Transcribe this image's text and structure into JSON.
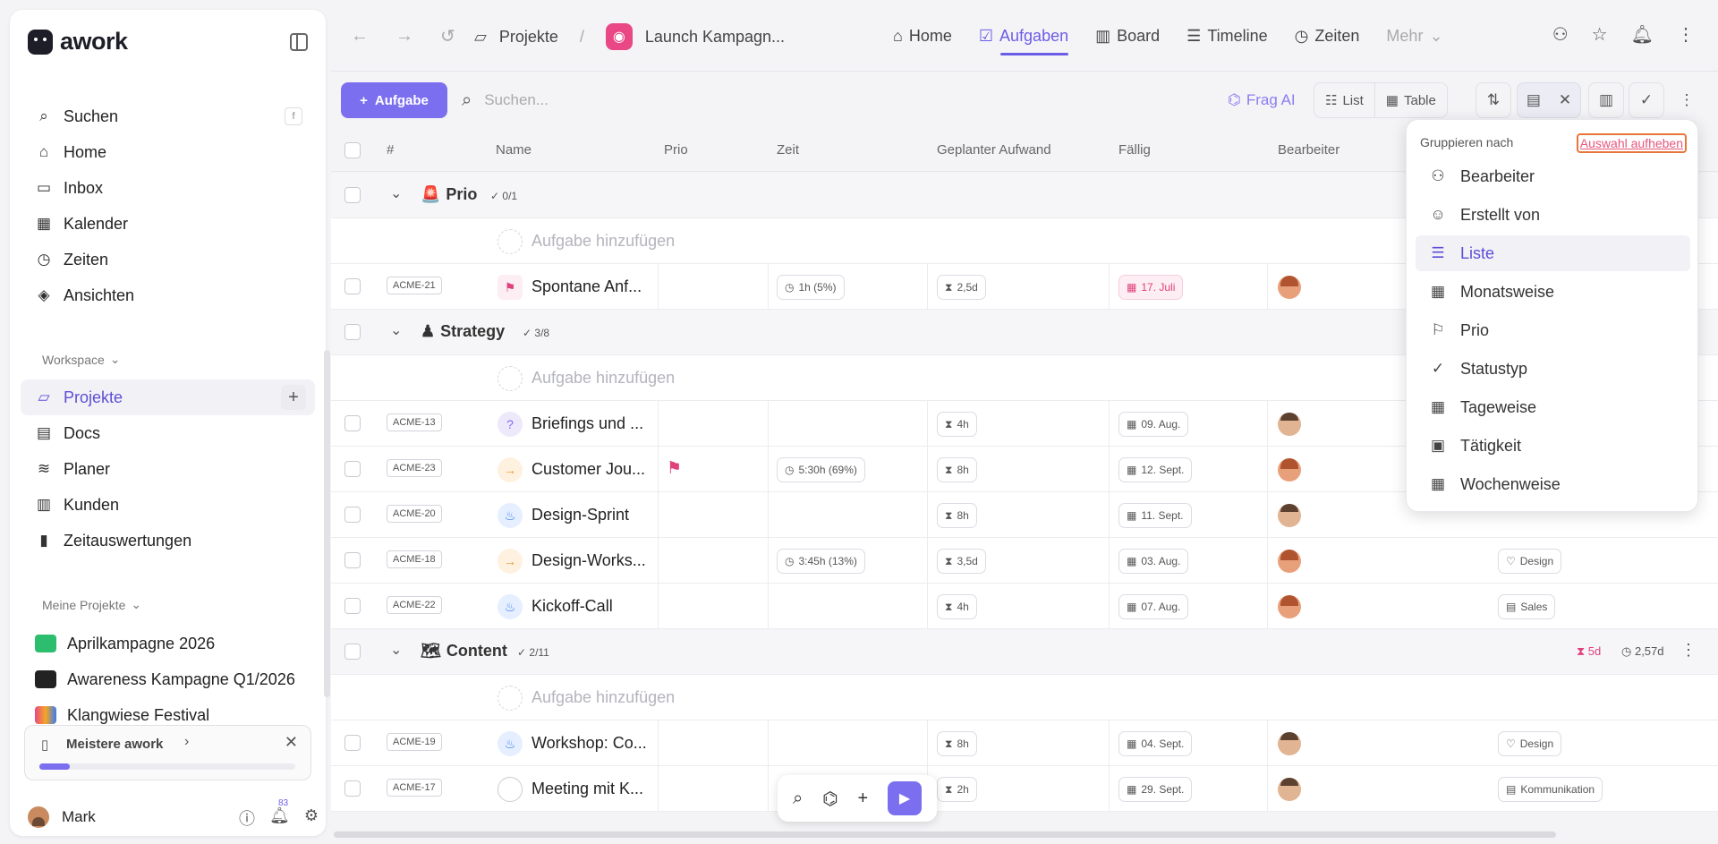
{
  "app": {
    "logo_text": "awork",
    "brand_color": "#7b6ff0"
  },
  "sidebar": {
    "search_label": "Suchen",
    "search_shortcut": "f",
    "main_items": [
      {
        "label": "Suchen",
        "icon": "search-icon"
      },
      {
        "label": "Home",
        "icon": "home-icon"
      },
      {
        "label": "Inbox",
        "icon": "inbox-icon"
      },
      {
        "label": "Kalender",
        "icon": "calendar-icon"
      },
      {
        "label": "Zeiten",
        "icon": "timer-icon"
      },
      {
        "label": "Ansichten",
        "icon": "layers-icon"
      }
    ],
    "workspace_label": "Workspace",
    "workspace_items": [
      {
        "label": "Projekte",
        "icon": "folder-icon",
        "active": true
      },
      {
        "label": "Docs",
        "icon": "doc-icon"
      },
      {
        "label": "Planer",
        "icon": "planner-icon"
      },
      {
        "label": "Kunden",
        "icon": "building-icon"
      },
      {
        "label": "Zeitauswertungen",
        "icon": "chart-icon"
      }
    ],
    "my_projects_label": "Meine Projekte",
    "projects": [
      {
        "label": "Aprilkampagne 2026",
        "color": "#2dbd6e"
      },
      {
        "label": "Awareness Kampagne Q1/2026",
        "color": "#222222"
      },
      {
        "label": "Klangwiese Festival",
        "color": "#3a7cf0"
      }
    ],
    "learn": {
      "label": "Meistere awork",
      "progress": 0.12
    },
    "user": {
      "name": "Mark",
      "notification_count": "83"
    }
  },
  "topbar": {
    "breadcrumb_root": "Projekte",
    "breadcrumb_sep": "/",
    "project_name": "Launch Kampagn...",
    "tabs": [
      {
        "label": "Home",
        "icon": "home-icon"
      },
      {
        "label": "Aufgaben",
        "icon": "task-check-icon",
        "active": true
      },
      {
        "label": "Board",
        "icon": "board-icon"
      },
      {
        "label": "Timeline",
        "icon": "timeline-icon"
      },
      {
        "label": "Zeiten",
        "icon": "timer-icon"
      },
      {
        "label": "Mehr",
        "icon": "chevron-down-icon"
      }
    ]
  },
  "toolbar": {
    "add_task": "Aufgabe",
    "search_placeholder": "Suchen...",
    "ask_ai": "Frag AI",
    "view_list": "List",
    "view_table": "Table"
  },
  "table": {
    "columns": [
      "#",
      "Name",
      "Prio",
      "Zeit",
      "Geplanter Aufwand",
      "Fällig",
      "Bearbeiter"
    ],
    "add_task_label": "Aufgabe hinzufügen",
    "groups": [
      {
        "name": "Prio",
        "emoji": "🚨",
        "count": "0/1"
      },
      {
        "name": "Strategy",
        "emoji": "♟",
        "count": "3/8"
      },
      {
        "name": "Content",
        "emoji": "🗺",
        "count": "2/11",
        "summary_effort": "5d",
        "summary_time": "2,57d"
      }
    ],
    "rows": [
      {
        "id": "ACME-21",
        "name": "Spontane Anf...",
        "time": "1h (5%)",
        "effort": "2,5d",
        "due": "17. Juli",
        "due_red": true
      },
      {
        "id": "ACME-13",
        "name": "Briefings und ...",
        "time": "",
        "effort": "4h",
        "due": "09. Aug."
      },
      {
        "id": "ACME-23",
        "name": "Customer Jou...",
        "time": "5:30h (69%)",
        "effort": "8h",
        "due": "12. Sept.",
        "prio_flag": true
      },
      {
        "id": "ACME-20",
        "name": "Design-Sprint",
        "time": "",
        "effort": "8h",
        "due": "11. Sept.",
        "tag": "Design"
      },
      {
        "id": "ACME-18",
        "name": "Design-Works...",
        "time": "3:45h (13%)",
        "effort": "3,5d",
        "due": "03. Aug.",
        "tag": "Design"
      },
      {
        "id": "ACME-22",
        "name": "Kickoff-Call",
        "time": "",
        "effort": "4h",
        "due": "07. Aug.",
        "tag": "Sales"
      },
      {
        "id": "ACME-19",
        "name": "Workshop: Co...",
        "time": "",
        "effort": "8h",
        "due": "04. Sept.",
        "tag": "Design"
      },
      {
        "id": "ACME-17",
        "name": "Meeting mit K...",
        "time": "",
        "effort": "2h",
        "due": "29. Sept.",
        "tag": "Kommunikation"
      }
    ]
  },
  "dropdown": {
    "title": "Gruppieren nach",
    "clear": "Auswahl aufheben",
    "items": [
      {
        "label": "Bearbeiter",
        "icon": "users-icon"
      },
      {
        "label": "Erstellt von",
        "icon": "user-icon"
      },
      {
        "label": "Liste",
        "icon": "list-icon",
        "selected": true
      },
      {
        "label": "Monatsweise",
        "icon": "calendar-icon"
      },
      {
        "label": "Prio",
        "icon": "flag-icon"
      },
      {
        "label": "Statustyp",
        "icon": "check-circle-icon"
      },
      {
        "label": "Tageweise",
        "icon": "calendar-icon"
      },
      {
        "label": "Tätigkeit",
        "icon": "briefcase-icon"
      },
      {
        "label": "Wochenweise",
        "icon": "calendar-icon"
      }
    ]
  }
}
